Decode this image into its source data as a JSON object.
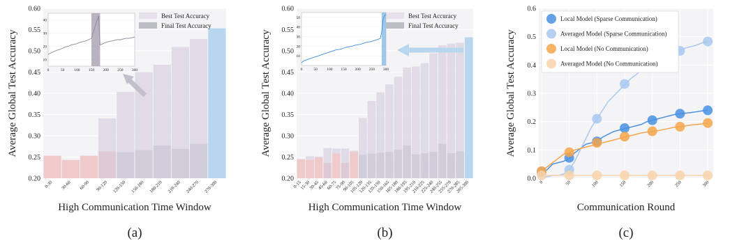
{
  "chart_data": [
    {
      "panel": "a",
      "type": "bar",
      "caption": "(a)",
      "xlabel": "High Communication Time Window",
      "ylabel": "Average Global Test Accuracy",
      "ylim": [
        0.2,
        0.6
      ],
      "yticks": [
        0.2,
        0.25,
        0.3,
        0.35,
        0.4,
        0.45,
        0.5,
        0.55,
        0.6
      ],
      "categories": [
        "0-30",
        "30-60",
        "60-90",
        "90-120",
        "120-150",
        "150-180",
        "180-210",
        "210-240",
        "240-270",
        "270-300"
      ],
      "series": [
        {
          "name": "Best Test Accuracy",
          "values": [
            0.253,
            0.243,
            0.253,
            0.341,
            0.403,
            0.45,
            0.467,
            0.509,
            0.528,
            0.553
          ]
        },
        {
          "name": "Final Test Accuracy",
          "values": [
            0.253,
            0.243,
            0.253,
            0.263,
            0.261,
            0.266,
            0.277,
            0.269,
            0.281,
            0.553
          ]
        }
      ],
      "highlight_index": 9,
      "legend_position": "top-right",
      "inset": {
        "xlim": [
          0,
          300
        ],
        "ylim": [
          5,
          45
        ],
        "xticks": [
          0,
          50,
          100,
          150,
          200,
          250,
          300
        ],
        "yticks": [
          10,
          20,
          30,
          40
        ],
        "shaded_window": [
          150,
          180
        ],
        "x": [
          0,
          10,
          20,
          30,
          40,
          50,
          60,
          70,
          80,
          90,
          100,
          110,
          120,
          130,
          140,
          150,
          160,
          170,
          175,
          180,
          190,
          200,
          210,
          220,
          230,
          240,
          250,
          260,
          270,
          280,
          290,
          300
        ],
        "y": [
          14,
          15,
          16,
          17,
          17.5,
          18.5,
          19.5,
          20,
          21,
          21.5,
          22,
          23,
          23.5,
          24,
          25,
          26,
          33,
          40,
          43,
          21,
          22,
          23,
          23.5,
          24,
          24.5,
          25,
          25,
          25.5,
          26,
          26,
          26.5,
          27
        ]
      }
    },
    {
      "panel": "b",
      "type": "bar",
      "caption": "(b)",
      "xlabel": "High Communication Time Window",
      "ylabel": "Average Global Test Accuracy",
      "ylim": [
        0.2,
        0.6
      ],
      "yticks": [
        0.2,
        0.25,
        0.3,
        0.35,
        0.4,
        0.45,
        0.5,
        0.55,
        0.6
      ],
      "categories": [
        "0-15",
        "15-30",
        "30-45",
        "45-60",
        "60-75",
        "75-90",
        "90-105",
        "105-120",
        "120-135",
        "135-150",
        "150-165",
        "165-180",
        "180-195",
        "195-210",
        "210-225",
        "225-240",
        "240-255",
        "255-270",
        "270-285",
        "285-300"
      ],
      "series": [
        {
          "name": "Best Test Accuracy",
          "values": [
            0.245,
            0.252,
            0.251,
            0.271,
            0.27,
            0.27,
            0.265,
            0.342,
            0.382,
            0.402,
            0.421,
            0.439,
            0.461,
            0.463,
            0.471,
            0.494,
            0.513,
            0.517,
            0.519,
            0.532
          ]
        },
        {
          "name": "Final Test Accuracy",
          "values": [
            0.245,
            0.243,
            0.249,
            0.236,
            0.258,
            0.236,
            0.262,
            0.255,
            0.258,
            0.26,
            0.262,
            0.267,
            0.277,
            0.256,
            0.259,
            0.262,
            0.281,
            0.259,
            0.263,
            0.532
          ]
        }
      ],
      "highlight_index": 19,
      "legend_position": "top-right",
      "inset": {
        "xlim": [
          0,
          300
        ],
        "ylim": [
          0,
          55
        ],
        "xticks": [
          0,
          50,
          100,
          150,
          200,
          250,
          300
        ],
        "yticks": [
          10,
          20,
          30,
          40,
          50
        ],
        "shaded_window": [
          285,
          300
        ],
        "x": [
          0,
          10,
          20,
          30,
          40,
          50,
          60,
          70,
          80,
          90,
          100,
          110,
          120,
          130,
          140,
          150,
          160,
          170,
          180,
          190,
          200,
          210,
          220,
          230,
          240,
          250,
          260,
          270,
          280,
          285,
          290,
          295,
          300
        ],
        "y": [
          3,
          5,
          6,
          7,
          8,
          9,
          10,
          11,
          12,
          13,
          14,
          15,
          16,
          16.5,
          17,
          18,
          19,
          19.5,
          20,
          21,
          21.5,
          22,
          23,
          24,
          24.5,
          25,
          26,
          27,
          28,
          35,
          48,
          52,
          53
        ]
      }
    },
    {
      "panel": "c",
      "type": "line",
      "caption": "(c)",
      "xlabel": "Communication Round",
      "ylabel": "Average Global Test Accuracy",
      "xlim": [
        -5,
        310
      ],
      "ylim": [
        0,
        0.6
      ],
      "xticks": [
        0,
        50,
        100,
        150,
        200,
        250,
        300
      ],
      "yticks": [
        0.0,
        0.1,
        0.2,
        0.3,
        0.4,
        0.5,
        0.6
      ],
      "grid": true,
      "legend_position": "top-left",
      "series": [
        {
          "name": "Local Model (Sparse Communication)",
          "color": "#4a90e2",
          "line_x": [
            0,
            10,
            20,
            30,
            40,
            50,
            60,
            70,
            80,
            90,
            100,
            110,
            120,
            130,
            140,
            150,
            160,
            170,
            180,
            190,
            200,
            210,
            220,
            230,
            240,
            250,
            260,
            270,
            280,
            290,
            300
          ],
          "line_y": [
            0.02,
            0.03,
            0.05,
            0.055,
            0.06,
            0.07,
            0.09,
            0.105,
            0.12,
            0.125,
            0.13,
            0.145,
            0.155,
            0.165,
            0.17,
            0.175,
            0.18,
            0.185,
            0.19,
            0.2,
            0.205,
            0.21,
            0.215,
            0.22,
            0.225,
            0.228,
            0.23,
            0.232,
            0.235,
            0.238,
            0.24
          ],
          "marker_x": [
            0,
            50,
            100,
            150,
            200,
            250,
            300
          ],
          "marker_y": [
            0.022,
            0.072,
            0.13,
            0.177,
            0.205,
            0.228,
            0.24
          ]
        },
        {
          "name": "Averaged Model (Sparse Communication)",
          "color": "#a9c8ef",
          "line_x": [
            0,
            10,
            20,
            30,
            40,
            50,
            60,
            70,
            80,
            90,
            100,
            110,
            120,
            130,
            140,
            150,
            160,
            170,
            180,
            190,
            200,
            210,
            220,
            230,
            240,
            250,
            260,
            270,
            280,
            290,
            300
          ],
          "line_y": [
            0.005,
            0.005,
            0.01,
            0.01,
            0.015,
            0.03,
            0.06,
            0.1,
            0.14,
            0.18,
            0.21,
            0.24,
            0.27,
            0.29,
            0.31,
            0.33,
            0.35,
            0.365,
            0.38,
            0.39,
            0.4,
            0.41,
            0.42,
            0.43,
            0.44,
            0.45,
            0.46,
            0.465,
            0.47,
            0.478,
            0.483
          ],
          "marker_x": [
            0,
            50,
            100,
            150,
            200,
            250,
            300
          ],
          "marker_y": [
            0.02,
            0.03,
            0.21,
            0.333,
            0.397,
            0.45,
            0.483
          ]
        },
        {
          "name": "Local Model (No Communication)",
          "color": "#f5a54a",
          "line_x": [
            0,
            10,
            20,
            30,
            40,
            50,
            60,
            70,
            80,
            90,
            100,
            110,
            120,
            130,
            140,
            150,
            160,
            170,
            180,
            190,
            200,
            210,
            220,
            230,
            240,
            250,
            260,
            270,
            280,
            290,
            300
          ],
          "line_y": [
            0.025,
            0.04,
            0.055,
            0.07,
            0.085,
            0.09,
            0.1,
            0.105,
            0.11,
            0.115,
            0.12,
            0.125,
            0.13,
            0.135,
            0.14,
            0.145,
            0.15,
            0.155,
            0.16,
            0.163,
            0.165,
            0.168,
            0.172,
            0.176,
            0.18,
            0.182,
            0.185,
            0.188,
            0.19,
            0.192,
            0.195
          ],
          "marker_x": [
            0,
            50,
            100,
            150,
            200,
            250,
            300
          ],
          "marker_y": [
            0.025,
            0.092,
            0.125,
            0.147,
            0.166,
            0.182,
            0.195
          ]
        },
        {
          "name": "Averaged Model (No Communication)",
          "color": "#f7d4ab",
          "line_x": [
            0,
            300
          ],
          "line_y": [
            0.01,
            0.01
          ],
          "marker_x": [
            0,
            50,
            100,
            150,
            200,
            250,
            300
          ],
          "marker_y": [
            0.01,
            0.01,
            0.01,
            0.01,
            0.01,
            0.01,
            0.01
          ]
        }
      ]
    }
  ]
}
